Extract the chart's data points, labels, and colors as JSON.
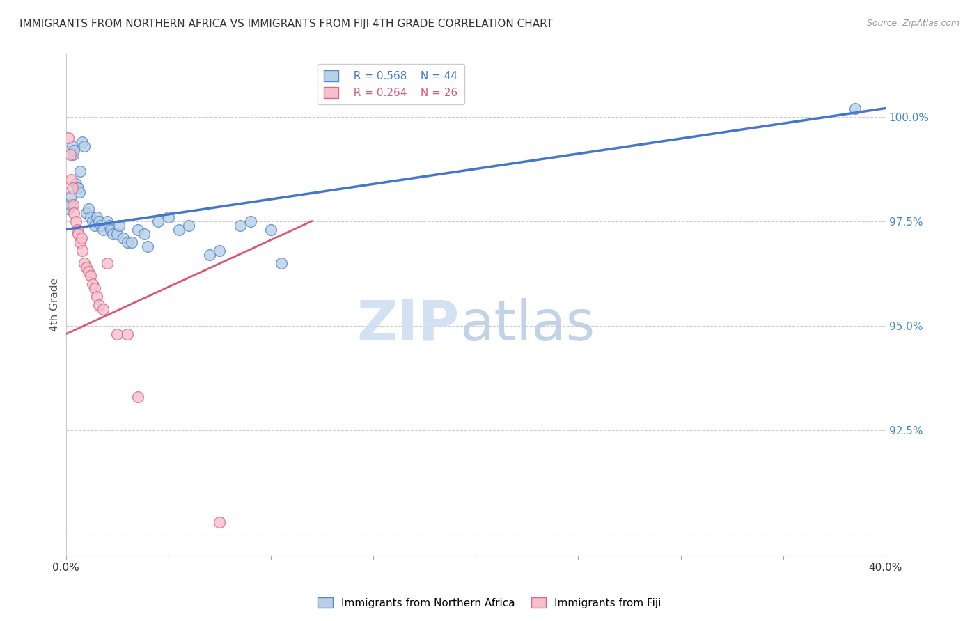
{
  "title": "IMMIGRANTS FROM NORTHERN AFRICA VS IMMIGRANTS FROM FIJI 4TH GRADE CORRELATION CHART",
  "source": "Source: ZipAtlas.com",
  "ylabel": "4th Grade",
  "yticks": [
    90.0,
    92.5,
    95.0,
    97.5,
    100.0
  ],
  "ytick_labels": [
    "",
    "92.5%",
    "95.0%",
    "97.5%",
    "100.0%"
  ],
  "xlim": [
    0.0,
    40.0
  ],
  "ylim": [
    89.5,
    101.5
  ],
  "r_blue": 0.568,
  "n_blue": 44,
  "r_pink": 0.264,
  "n_pink": 26,
  "blue_color": "#b8d0e8",
  "blue_edge_color": "#5588cc",
  "blue_line_color": "#4477cc",
  "pink_color": "#f5c0cc",
  "pink_edge_color": "#dd6688",
  "pink_line_color": "#dd5577",
  "legend_label_blue": "Immigrants from Northern Africa",
  "legend_label_pink": "Immigrants from Fiji",
  "blue_x": [
    0.1,
    0.2,
    0.25,
    0.3,
    0.35,
    0.4,
    0.5,
    0.6,
    0.65,
    0.7,
    0.8,
    0.9,
    1.0,
    1.1,
    1.2,
    1.3,
    1.4,
    1.5,
    1.6,
    1.7,
    1.8,
    2.0,
    2.1,
    2.2,
    2.3,
    2.5,
    2.6,
    2.8,
    3.0,
    3.2,
    3.5,
    3.8,
    4.0,
    4.5,
    5.0,
    5.5,
    6.0,
    7.0,
    7.5,
    8.5,
    9.0,
    10.0,
    10.5,
    38.5
  ],
  "blue_y": [
    97.8,
    97.9,
    98.1,
    99.3,
    99.1,
    99.2,
    98.4,
    98.3,
    98.2,
    98.7,
    99.4,
    99.3,
    97.7,
    97.8,
    97.6,
    97.5,
    97.4,
    97.6,
    97.5,
    97.4,
    97.3,
    97.5,
    97.4,
    97.3,
    97.2,
    97.2,
    97.4,
    97.1,
    97.0,
    97.0,
    97.3,
    97.2,
    96.9,
    97.5,
    97.6,
    97.3,
    97.4,
    96.7,
    96.8,
    97.4,
    97.5,
    97.3,
    96.5,
    100.2
  ],
  "pink_x": [
    0.1,
    0.2,
    0.25,
    0.3,
    0.35,
    0.4,
    0.5,
    0.55,
    0.6,
    0.7,
    0.75,
    0.8,
    0.9,
    1.0,
    1.1,
    1.2,
    1.3,
    1.4,
    1.5,
    1.6,
    1.8,
    2.0,
    2.5,
    3.0,
    3.5,
    7.5
  ],
  "pink_y": [
    99.5,
    99.1,
    98.5,
    98.3,
    97.9,
    97.7,
    97.5,
    97.3,
    97.2,
    97.0,
    97.1,
    96.8,
    96.5,
    96.4,
    96.3,
    96.2,
    96.0,
    95.9,
    95.7,
    95.5,
    95.4,
    96.5,
    94.8,
    94.8,
    93.3,
    90.3
  ],
  "blue_trend_x0": 0.0,
  "blue_trend_y0": 97.3,
  "blue_trend_x1": 40.0,
  "blue_trend_y1": 100.2,
  "pink_trend_x0": 0.0,
  "pink_trend_y0": 94.8,
  "pink_trend_x1": 12.0,
  "pink_trend_y1": 97.5
}
